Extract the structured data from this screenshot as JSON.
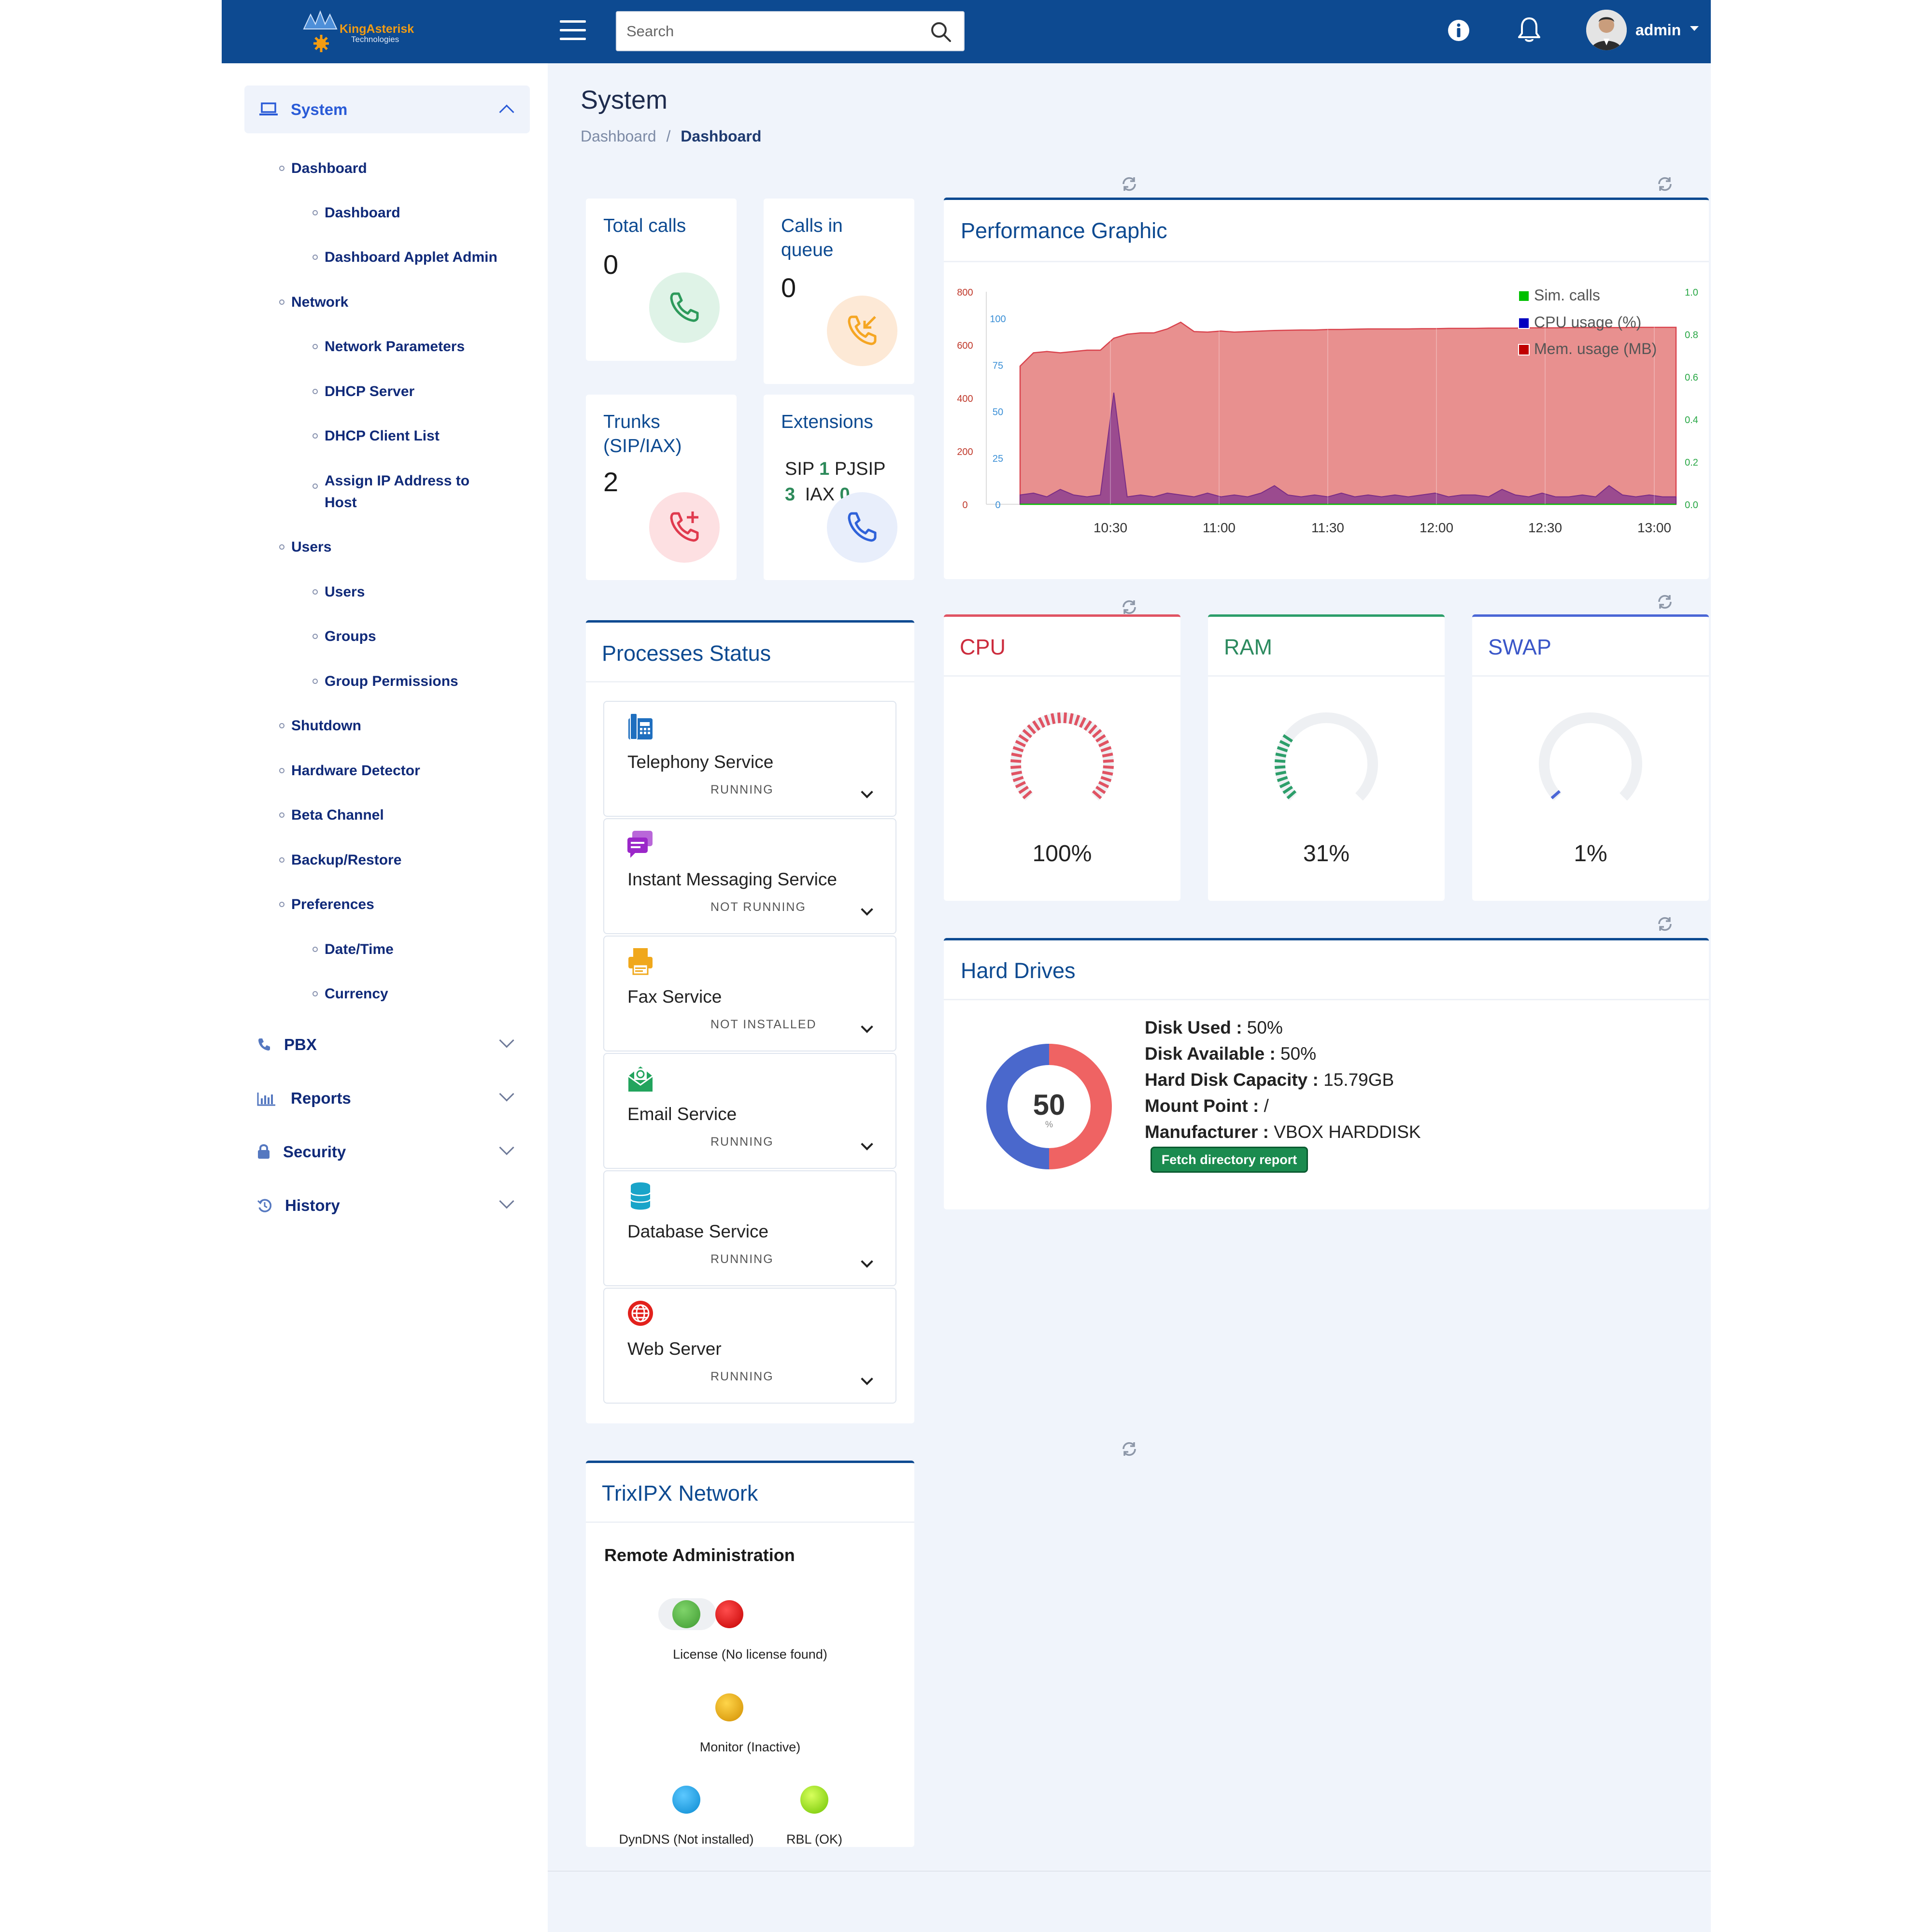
{
  "header": {
    "logo_name": "KingAsterisk",
    "logo_sub": "Technologies",
    "search_placeholder": "Search",
    "user": "admin"
  },
  "sidebar": {
    "system": "System",
    "items": [
      {
        "label": "Dashboard",
        "level": 1
      },
      {
        "label": "Dashboard",
        "level": 2
      },
      {
        "label": "Dashboard Applet Admin",
        "level": 2
      },
      {
        "label": "Network",
        "level": 1
      },
      {
        "label": "Network Parameters",
        "level": 2
      },
      {
        "label": "DHCP Server",
        "level": 2
      },
      {
        "label": "DHCP Client List",
        "level": 2
      },
      {
        "label": "Assign IP Address to",
        "label2": "Host",
        "level": 2
      },
      {
        "label": "Users",
        "level": 1
      },
      {
        "label": "Users",
        "level": 2
      },
      {
        "label": "Groups",
        "level": 2
      },
      {
        "label": "Group Permissions",
        "level": 2
      },
      {
        "label": "Shutdown",
        "level": 1
      },
      {
        "label": "Hardware Detector",
        "level": 1
      },
      {
        "label": "Beta Channel",
        "level": 1
      },
      {
        "label": "Backup/Restore",
        "level": 1
      },
      {
        "label": "Preferences",
        "level": 1
      },
      {
        "label": "Date/Time",
        "level": 2
      },
      {
        "label": "Currency",
        "level": 2
      }
    ],
    "pbx": "PBX",
    "reports": "Reports",
    "security": "Security",
    "history": "History"
  },
  "page": {
    "title": "System",
    "breadcrumb_link": "Dashboard",
    "breadcrumb_sep": "/",
    "breadcrumb_current": "Dashboard"
  },
  "stats": {
    "total_calls_label": "Total calls",
    "total_calls_value": "0",
    "calls_queue_label1": "Calls in",
    "calls_queue_label2": "queue",
    "calls_queue_value": "0",
    "trunks_label1": "Trunks",
    "trunks_label2": "(SIP/IAX)",
    "trunks_value": "2",
    "extensions_label": "Extensions",
    "ext_sip_label": "SIP",
    "ext_sip_value": "1",
    "ext_pjsip_label": "PJSIP",
    "ext_pjsip_value": "3",
    "ext_iax_label": "IAX",
    "ext_iax_value": "0"
  },
  "performance": {
    "title": "Performance Graphic"
  },
  "chart_data": {
    "type": "area",
    "title": "Performance Graphic",
    "x_ticks": [
      "10:30",
      "11:00",
      "11:30",
      "12:00",
      "12:30",
      "13:00"
    ],
    "y_left_mem": {
      "ticks": [
        "800",
        "600",
        "400",
        "200",
        "0"
      ],
      "range": [
        0,
        800
      ]
    },
    "y_left_cpu": {
      "ticks": [
        "100",
        "75",
        "50",
        "25",
        "0"
      ],
      "range": [
        0,
        100
      ]
    },
    "y_right_calls": {
      "ticks": [
        "1.0",
        "0.8",
        "0.6",
        "0.4",
        "0.2",
        "0.0"
      ],
      "range": [
        0,
        1
      ]
    },
    "legend_position": "top-right",
    "series": [
      {
        "name": "Sim. calls",
        "color": "#00c000",
        "values": [
          0,
          0,
          0,
          0,
          0,
          0,
          0,
          0,
          0,
          0,
          0,
          0,
          0,
          0,
          0,
          0,
          0,
          0,
          0,
          0,
          0,
          0,
          0,
          0,
          0,
          0,
          0,
          0,
          0,
          0,
          0,
          0,
          0,
          0,
          0,
          0,
          0,
          0,
          0,
          0,
          0,
          0,
          0,
          0,
          0,
          0,
          0,
          0,
          0,
          0
        ]
      },
      {
        "name": "CPU usage (%)",
        "color": "#0000c0",
        "values": [
          5,
          6,
          4,
          8,
          5,
          4,
          5,
          60,
          4,
          5,
          4,
          6,
          5,
          4,
          6,
          4,
          5,
          4,
          6,
          10,
          5,
          4,
          5,
          4,
          6,
          4,
          5,
          4,
          5,
          4,
          5,
          6,
          4,
          5,
          5,
          4,
          8,
          5,
          4,
          6,
          4,
          4,
          5,
          4,
          10,
          5,
          4,
          5,
          4,
          4
        ]
      },
      {
        "name": "Mem. usage (MB)",
        "color": "#c00000",
        "values": [
          520,
          570,
          575,
          570,
          575,
          580,
          580,
          625,
          640,
          645,
          645,
          660,
          685,
          650,
          648,
          652,
          648,
          650,
          652,
          654,
          655,
          656,
          656,
          658,
          658,
          659,
          660,
          660,
          660,
          660,
          661,
          661,
          662,
          662,
          662,
          663,
          663,
          663,
          664,
          664,
          664,
          665,
          665,
          665,
          665,
          665,
          666,
          666,
          666,
          666
        ]
      }
    ]
  },
  "processes": {
    "title": "Processes Status",
    "items": [
      {
        "name": "Telephony Service",
        "status": "RUNNING",
        "icon": "telephone-icon",
        "color": "#1f6fbf"
      },
      {
        "name": "Instant Messaging Service",
        "status": "NOT RUNNING",
        "icon": "chat-icon",
        "color": "#9b27c9"
      },
      {
        "name": "Fax Service",
        "status": "NOT INSTALLED",
        "icon": "printer-icon",
        "color": "#f0a81c"
      },
      {
        "name": "Email Service",
        "status": "RUNNING",
        "icon": "envelope-icon",
        "color": "#22a45d"
      },
      {
        "name": "Database Service",
        "status": "RUNNING",
        "icon": "database-icon",
        "color": "#19a4c9"
      },
      {
        "name": "Web Server",
        "status": "RUNNING",
        "icon": "globe-icon",
        "color": "#e2211c"
      }
    ]
  },
  "gauges": [
    {
      "name": "CPU",
      "value": "100%",
      "fraction": 1.0,
      "color": "#e05363",
      "title_color": "#cc2c3d"
    },
    {
      "name": "RAM",
      "value": "31%",
      "fraction": 0.31,
      "color": "#2c9e6a",
      "title_color": "#2c8a5f"
    },
    {
      "name": "SWAP",
      "value": "1%",
      "fraction": 0.01,
      "color": "#4a66d6",
      "title_color": "#3a56c8"
    }
  ],
  "hard_drives": {
    "title": "Hard Drives",
    "center_value": "50",
    "center_unit": "%",
    "used_fraction": 0.5,
    "lines": [
      {
        "label": "Disk Used :",
        "value": "50%"
      },
      {
        "label": "Disk Available :",
        "value": "50%"
      },
      {
        "label": "Hard Disk Capacity :",
        "value": "15.79GB"
      },
      {
        "label": "Mount Point :",
        "value": "/"
      },
      {
        "label": "Manufacturer :",
        "value": "VBOX HARDDISK"
      }
    ],
    "button": "Fetch directory report"
  },
  "network": {
    "title": "TrixIPX Network",
    "subtitle": "Remote Administration",
    "license": "License (No license found)",
    "monitor": "Monitor (Inactive)",
    "dyndns": "DynDNS (Not installed)",
    "rbl": "RBL (OK)"
  }
}
